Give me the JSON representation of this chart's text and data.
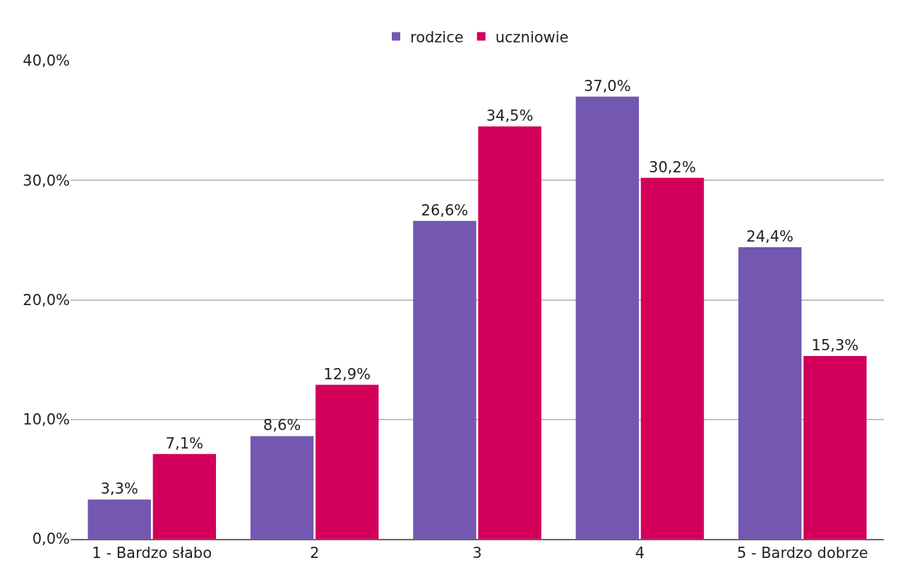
{
  "chart_data": {
    "type": "bar",
    "categories": [
      "1 - Bardzo słabo",
      "2",
      "3",
      "4",
      "5 - Bardzo dobrze"
    ],
    "series": [
      {
        "name": "rodzice",
        "color": "#7357b0",
        "values": [
          3.3,
          8.6,
          26.6,
          37.0,
          24.4
        ],
        "value_labels": [
          "3,3%",
          "8,6%",
          "26,6%",
          "37,0%",
          "24,4%"
        ]
      },
      {
        "name": "uczniowie",
        "color": "#d3005b",
        "values": [
          7.1,
          12.9,
          34.5,
          30.2,
          15.3
        ],
        "value_labels": [
          "7,1%",
          "12,9%",
          "34,5%",
          "30,2%",
          "15,3%"
        ]
      }
    ],
    "ylim": [
      0,
      40
    ],
    "yticks": [
      {
        "value": 0,
        "label": "0,0%"
      },
      {
        "value": 10,
        "label": "10,0%"
      },
      {
        "value": 20,
        "label": "20,0%"
      },
      {
        "value": 30,
        "label": "30,0%"
      },
      {
        "value": 40,
        "label": "40,0%"
      }
    ],
    "grid": "y",
    "legend": "top"
  }
}
